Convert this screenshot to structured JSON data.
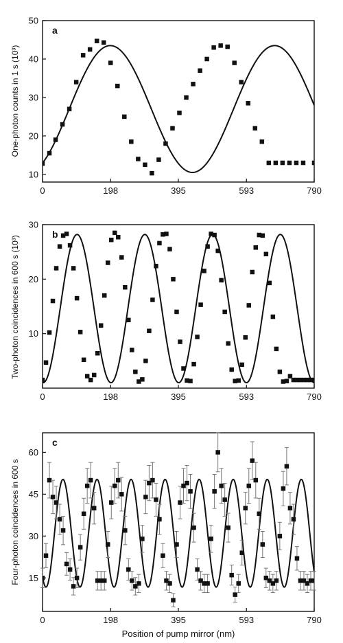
{
  "chart_data": [
    {
      "type": "scatter",
      "panel_label": "a",
      "ylabel": "One-photon counts in 1 s (10³)",
      "xlim": [
        0,
        790
      ],
      "ylim": [
        8,
        50
      ],
      "xticks": [
        0,
        198,
        395,
        593,
        790
      ],
      "yticks": [
        10,
        20,
        30,
        40,
        50
      ],
      "series": [
        {
          "kind": "points",
          "x": [
            0,
            20,
            38,
            58,
            78,
            98,
            118,
            138,
            158,
            178,
            198,
            218,
            238,
            258,
            278,
            298,
            318,
            338,
            358,
            378,
            398,
            418,
            438,
            458,
            478,
            498,
            518,
            538,
            558,
            578,
            598,
            618,
            638,
            658,
            678,
            698,
            718,
            738,
            758,
            790
          ],
          "y": [
            12.8,
            15.5,
            19,
            23,
            27,
            34,
            41,
            42.5,
            44.7,
            44.3,
            39,
            33,
            25,
            18.5,
            14,
            12.5,
            10.3,
            13.8,
            18,
            22,
            26,
            30,
            33.5,
            37,
            40,
            43,
            43.5,
            43.2,
            39,
            34,
            28.5,
            22,
            18.5,
            13,
            13,
            13,
            13,
            13,
            13,
            13
          ]
        },
        {
          "kind": "fit",
          "formula": "27 - 16.5*cos(2*pi*(x+42)/478)"
        }
      ]
    },
    {
      "type": "scatter",
      "panel_label": "b",
      "ylabel": "Two-photon coincidences in 600 s (10³)",
      "xlim": [
        0,
        790
      ],
      "ylim": [
        0,
        30
      ],
      "xticks": [
        0,
        198,
        395,
        593,
        790
      ],
      "yticks": [
        10,
        20,
        30
      ],
      "series": [
        {
          "kind": "points",
          "x": [
            0,
            10,
            20,
            30,
            40,
            50,
            60,
            70,
            80,
            90,
            100,
            110,
            120,
            130,
            140,
            150,
            160,
            170,
            180,
            190,
            200,
            210,
            220,
            230,
            240,
            250,
            260,
            270,
            280,
            290,
            300,
            310,
            320,
            330,
            340,
            350,
            360,
            370,
            380,
            390,
            400,
            410,
            420,
            430,
            440,
            450,
            460,
            470,
            480,
            490,
            500,
            510,
            520,
            530,
            540,
            550,
            560,
            570,
            580,
            590,
            600,
            610,
            620,
            630,
            640,
            650,
            660,
            670,
            680,
            690,
            700,
            710,
            720,
            730,
            740,
            750,
            760,
            770,
            780,
            790
          ],
          "y": [
            1.5,
            4.7,
            10.2,
            16,
            22,
            26,
            28,
            28.3,
            26.2,
            22,
            16.5,
            10.3,
            5.2,
            2.2,
            1.5,
            2.4,
            6.4,
            11.5,
            17,
            23,
            27.2,
            28.5,
            27.7,
            24,
            18.5,
            12.5,
            7,
            3,
            1.2,
            1.6,
            5,
            10.5,
            16.2,
            22.4,
            26.6,
            28.2,
            28.3,
            25.5,
            20,
            14,
            8.5,
            3.6,
            1.4,
            1.3,
            4.4,
            9.4,
            15.3,
            21.5,
            26,
            28.3,
            28.1,
            25.2,
            19.8,
            14,
            8.2,
            3.4,
            1.3,
            1.4,
            4.3,
            9.3,
            15.2,
            21.3,
            25.8,
            28.1,
            28,
            24.6,
            19.3,
            13.1,
            7.2,
            3,
            1.2,
            1.3,
            2.2,
            1.5,
            1.5,
            1.5,
            1.5,
            1.5,
            1.5,
            1.5
          ]
        },
        {
          "kind": "fit",
          "formula": "14.6 - 13.6*cos(2*pi*(x-2)/197)"
        }
      ]
    },
    {
      "type": "scatter",
      "panel_label": "c",
      "ylabel": "Four-photon coincidences in 600 s",
      "xlabel": "Position of pump mirror (nm)",
      "xlim": [
        0,
        790
      ],
      "ylim": [
        3,
        67
      ],
      "xticks": [
        0,
        198,
        395,
        593,
        790
      ],
      "yticks": [
        15,
        30,
        45,
        60
      ],
      "series": [
        {
          "kind": "points",
          "x": [
            0,
            10,
            20,
            30,
            40,
            50,
            60,
            70,
            80,
            90,
            100,
            110,
            120,
            130,
            140,
            150,
            160,
            170,
            180,
            190,
            200,
            210,
            220,
            230,
            240,
            250,
            260,
            270,
            280,
            290,
            300,
            310,
            320,
            330,
            340,
            350,
            360,
            370,
            380,
            390,
            400,
            410,
            420,
            430,
            440,
            450,
            460,
            470,
            480,
            490,
            500,
            510,
            520,
            530,
            540,
            550,
            560,
            570,
            580,
            590,
            600,
            610,
            620,
            630,
            640,
            650,
            660,
            670,
            680,
            690,
            700,
            710,
            720,
            730,
            740,
            750,
            760,
            770,
            780,
            790
          ],
          "y": [
            15,
            23,
            50,
            44,
            42,
            36,
            32,
            20,
            18,
            12,
            15,
            26,
            38,
            48,
            50,
            40,
            14,
            14,
            14,
            27,
            42,
            48,
            50,
            45,
            32,
            18,
            14,
            12,
            13,
            29,
            44,
            49,
            50,
            43,
            36,
            23,
            14,
            13,
            7,
            27,
            42,
            48,
            49,
            46,
            33,
            18,
            14,
            13,
            13,
            29,
            46,
            60,
            48,
            43,
            33,
            16,
            9,
            13,
            24,
            40,
            48,
            57,
            50,
            38,
            27,
            15,
            14,
            13,
            14,
            30,
            47,
            55,
            40,
            36,
            22,
            14,
            14,
            13,
            14,
            14
          ]
        },
        {
          "kind": "fit",
          "formula": "31 - 19.3*cos(2*pi*(x-10)/99)"
        }
      ]
    }
  ]
}
